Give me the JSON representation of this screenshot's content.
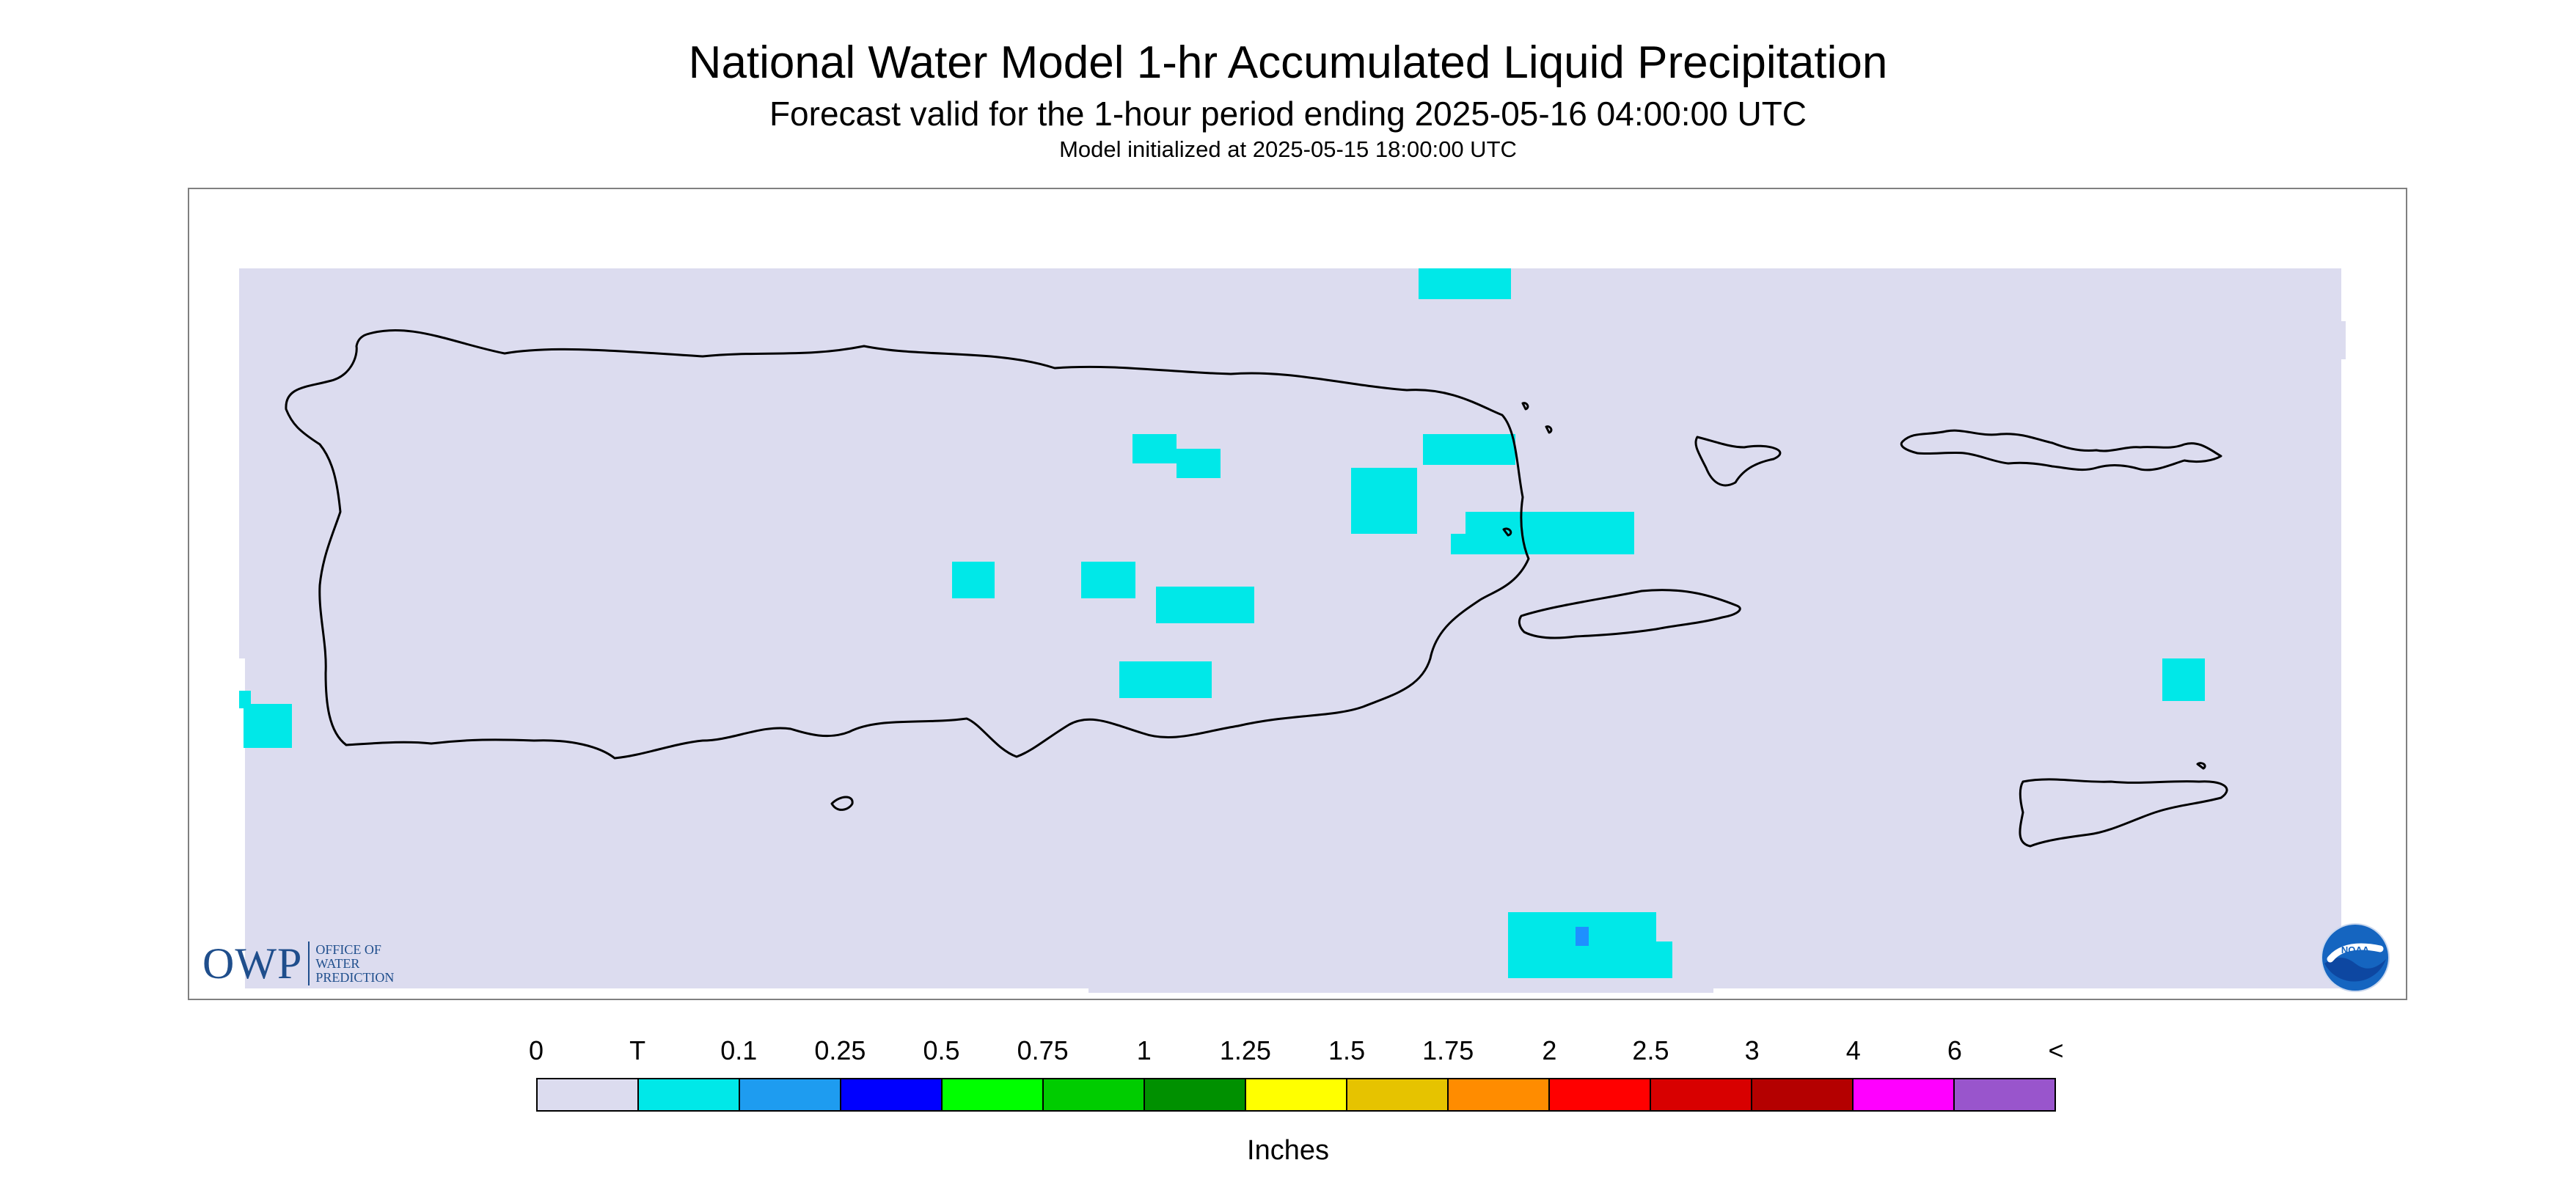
{
  "title": "National Water Model 1-hr Accumulated Liquid Precipitation",
  "subtitle": "Forecast valid for the 1-hour period ending 2025-05-16 04:00:00 UTC",
  "init_text": "Model initialized at 2025-05-15 18:00:00 UTC",
  "colors": {
    "background_field": "#dcdcef",
    "precip_trace": "#00e8e8",
    "precip_0_1": "#1e90ff",
    "coastline": "#000000",
    "owp_blue": "#1f4e8c"
  },
  "map": {
    "region": "Puerto Rico and U.S. Virgin Islands",
    "coastline_color": "#000000",
    "precip_cells_trace_count": 15,
    "precip_cells_0_1_count": 1
  },
  "logos": {
    "owp": {
      "letters": "OWP",
      "lines": [
        "Office of",
        "Water",
        "Prediction"
      ]
    },
    "noaa": {
      "text": "NOAA"
    }
  },
  "legend": {
    "units": "Inches",
    "tick_labels": [
      "0",
      "T",
      "0.1",
      "0.25",
      "0.5",
      "0.75",
      "1",
      "1.25",
      "1.5",
      "1.75",
      "2",
      "2.5",
      "3",
      "4",
      "6",
      "<"
    ],
    "colors": [
      "#dcdcef",
      "#00e8e8",
      "#1e9cf0",
      "#0000ff",
      "#00ff00",
      "#00cc00",
      "#009000",
      "#ffff00",
      "#e6c300",
      "#ff8c00",
      "#ff0000",
      "#d80000",
      "#b40000",
      "#ff00ff",
      "#9955cc"
    ]
  }
}
